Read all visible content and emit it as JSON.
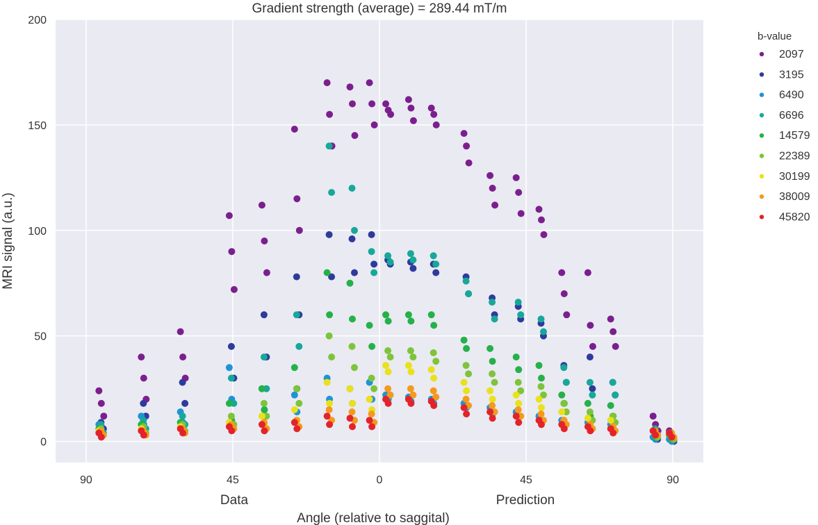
{
  "chart_data": {
    "type": "scatter",
    "title": "Gradient strength (average) = 289.44 mT/m",
    "xlabel": "Angle (relative to saggital)",
    "ylabel": "MRI signal (a.u.)",
    "panel_labels": [
      "Data",
      "Prediction"
    ],
    "xticks": [
      "90",
      "45",
      "0",
      "45",
      "90"
    ],
    "ylim": [
      -10,
      200
    ],
    "yticks": [
      0,
      50,
      100,
      150,
      200
    ],
    "grid": true,
    "legend": {
      "title": "b-value",
      "placement": "outside-right"
    },
    "series": [
      {
        "name": "2097",
        "color": "#7b1f8e"
      },
      {
        "name": "3195",
        "color": "#2e3b9c"
      },
      {
        "name": "6490",
        "color": "#1f93d6"
      },
      {
        "name": "6696",
        "color": "#17a89a"
      },
      {
        "name": "14579",
        "color": "#25b14a"
      },
      {
        "name": "22389",
        "color": "#7ec43a"
      },
      {
        "name": "30199",
        "color": "#e9e11b"
      },
      {
        "name": "38009",
        "color": "#f39a1e"
      },
      {
        "name": "45820",
        "color": "#e3232a"
      }
    ],
    "angle_groups": [
      {
        "x": 85,
        "values": [
          [
            24,
            18,
            12
          ],
          [
            9,
            6
          ],
          [
            8,
            5
          ],
          [
            8,
            4
          ],
          [
            6,
            3
          ],
          [
            6,
            3
          ],
          [
            5,
            3
          ],
          [
            5,
            3
          ],
          [
            4,
            2
          ]
        ]
      },
      {
        "x": 72,
        "values": [
          [
            40,
            30,
            20
          ],
          [
            18,
            12
          ],
          [
            12,
            8
          ],
          [
            10,
            6
          ],
          [
            8,
            5
          ],
          [
            7,
            4
          ],
          [
            6,
            4
          ],
          [
            5,
            3
          ],
          [
            5,
            3
          ]
        ]
      },
      {
        "x": 60,
        "values": [
          [
            52,
            40,
            30
          ],
          [
            28,
            18
          ],
          [
            14,
            9
          ],
          [
            12,
            8
          ],
          [
            9,
            6
          ],
          [
            8,
            5
          ],
          [
            7,
            5
          ],
          [
            6,
            4
          ],
          [
            6,
            4
          ]
        ]
      },
      {
        "x": 45,
        "values": [
          [
            107,
            90,
            72
          ],
          [
            45,
            30
          ],
          [
            35,
            20
          ],
          [
            30,
            18
          ],
          [
            18,
            10
          ],
          [
            12,
            8
          ],
          [
            9,
            6
          ],
          [
            8,
            6
          ],
          [
            7,
            5
          ]
        ]
      },
      {
        "x": 35,
        "values": [
          [
            112,
            95,
            80
          ],
          [
            60,
            40
          ],
          [
            25,
            15
          ],
          [
            40,
            25
          ],
          [
            25,
            15
          ],
          [
            18,
            12
          ],
          [
            12,
            8
          ],
          [
            9,
            6
          ],
          [
            8,
            5
          ]
        ]
      },
      {
        "x": 25,
        "values": [
          [
            148,
            115,
            100
          ],
          [
            78,
            60
          ],
          [
            22,
            14
          ],
          [
            60,
            45
          ],
          [
            35,
            25
          ],
          [
            25,
            18
          ],
          [
            15,
            10
          ],
          [
            10,
            7
          ],
          [
            9,
            6
          ]
        ]
      },
      {
        "x": 15,
        "values": [
          [
            170,
            155,
            140
          ],
          [
            98,
            78
          ],
          [
            30,
            20
          ],
          [
            140,
            118
          ],
          [
            80,
            60
          ],
          [
            50,
            40
          ],
          [
            28,
            18
          ],
          [
            15,
            10
          ],
          [
            12,
            8
          ]
        ]
      },
      {
        "x": 8,
        "values": [
          [
            168,
            160,
            145
          ],
          [
            96,
            80
          ],
          [
            25,
            18
          ],
          [
            120,
            100
          ],
          [
            75,
            58
          ],
          [
            45,
            35
          ],
          [
            25,
            18
          ],
          [
            14,
            10
          ],
          [
            11,
            7
          ]
        ]
      },
      {
        "x": 2,
        "values": [
          [
            170,
            160,
            150
          ],
          [
            98,
            84
          ],
          [
            28,
            20
          ],
          [
            90,
            80
          ],
          [
            55,
            45
          ],
          [
            30,
            25
          ],
          [
            20,
            15
          ],
          [
            13,
            9
          ],
          [
            10,
            7
          ]
        ]
      }
    ],
    "prediction_groups": [
      {
        "x": 3,
        "values": [
          [
            160,
            157,
            155
          ],
          [
            86,
            84
          ],
          [
            22,
            20
          ],
          [
            88,
            85
          ],
          [
            60,
            57
          ],
          [
            43,
            40
          ],
          [
            36,
            33
          ],
          [
            25,
            22
          ],
          [
            20,
            18
          ]
        ]
      },
      {
        "x": 10,
        "values": [
          [
            162,
            158,
            152
          ],
          [
            85,
            82
          ],
          [
            21,
            19
          ],
          [
            89,
            86
          ],
          [
            60,
            57
          ],
          [
            43,
            40
          ],
          [
            36,
            33
          ],
          [
            25,
            22
          ],
          [
            20,
            18
          ]
        ]
      },
      {
        "x": 17,
        "values": [
          [
            158,
            155,
            150
          ],
          [
            84,
            80
          ],
          [
            20,
            18
          ],
          [
            88,
            84
          ],
          [
            60,
            55
          ],
          [
            42,
            38
          ],
          [
            34,
            30
          ],
          [
            24,
            21
          ],
          [
            19,
            17
          ]
        ]
      },
      {
        "x": 27,
        "values": [
          [
            146,
            140,
            132
          ],
          [
            78,
            70
          ],
          [
            18,
            16
          ],
          [
            76,
            70
          ],
          [
            48,
            44
          ],
          [
            36,
            32
          ],
          [
            28,
            24
          ],
          [
            20,
            17
          ],
          [
            16,
            13
          ]
        ]
      },
      {
        "x": 35,
        "values": [
          [
            126,
            120,
            112
          ],
          [
            68,
            60
          ],
          [
            16,
            13
          ],
          [
            66,
            58
          ],
          [
            44,
            38
          ],
          [
            32,
            28
          ],
          [
            24,
            20
          ],
          [
            17,
            14
          ],
          [
            14,
            11
          ]
        ]
      },
      {
        "x": 43,
        "values": [
          [
            125,
            118,
            108
          ],
          [
            64,
            58
          ],
          [
            14,
            12
          ],
          [
            66,
            60
          ],
          [
            40,
            34
          ],
          [
            28,
            24
          ],
          [
            22,
            18
          ],
          [
            15,
            12
          ],
          [
            12,
            9
          ]
        ]
      },
      {
        "x": 50,
        "values": [
          [
            110,
            105,
            98
          ],
          [
            56,
            50
          ],
          [
            12,
            10
          ],
          [
            58,
            52
          ],
          [
            36,
            30
          ],
          [
            26,
            22
          ],
          [
            20,
            16
          ],
          [
            13,
            10
          ],
          [
            10,
            8
          ]
        ]
      },
      {
        "x": 57,
        "values": [
          [
            80,
            70,
            60
          ],
          [
            36,
            28
          ],
          [
            10,
            8
          ],
          [
            35,
            28
          ],
          [
            22,
            18
          ],
          [
            18,
            14
          ],
          [
            14,
            10
          ],
          [
            10,
            8
          ],
          [
            8,
            6
          ]
        ]
      },
      {
        "x": 65,
        "values": [
          [
            80,
            55,
            45
          ],
          [
            40,
            25
          ],
          [
            9,
            7
          ],
          [
            28,
            22
          ],
          [
            18,
            12
          ],
          [
            14,
            10
          ],
          [
            11,
            8
          ],
          [
            8,
            6
          ],
          [
            7,
            5
          ]
        ]
      },
      {
        "x": 72,
        "values": [
          [
            58,
            52,
            45
          ],
          [
            28,
            22
          ],
          [
            8,
            6
          ],
          [
            28,
            22
          ],
          [
            17,
            12
          ],
          [
            12,
            9
          ],
          [
            10,
            7
          ],
          [
            7,
            5
          ],
          [
            6,
            4
          ]
        ]
      },
      {
        "x": 85,
        "values": [
          [
            12,
            8,
            5
          ],
          [
            3,
            1
          ],
          [
            2,
            1
          ],
          [
            6,
            3
          ],
          [
            5,
            2
          ],
          [
            4,
            2
          ],
          [
            5,
            3
          ],
          [
            5,
            3
          ],
          [
            5,
            3
          ]
        ]
      },
      {
        "x": 90,
        "values": [
          [
            5,
            3
          ],
          [
            2,
            0
          ],
          [
            1,
            0
          ],
          [
            4,
            1
          ],
          [
            3,
            1
          ],
          [
            3,
            1
          ],
          [
            4,
            2
          ],
          [
            4,
            2
          ],
          [
            4,
            2
          ]
        ]
      }
    ]
  }
}
